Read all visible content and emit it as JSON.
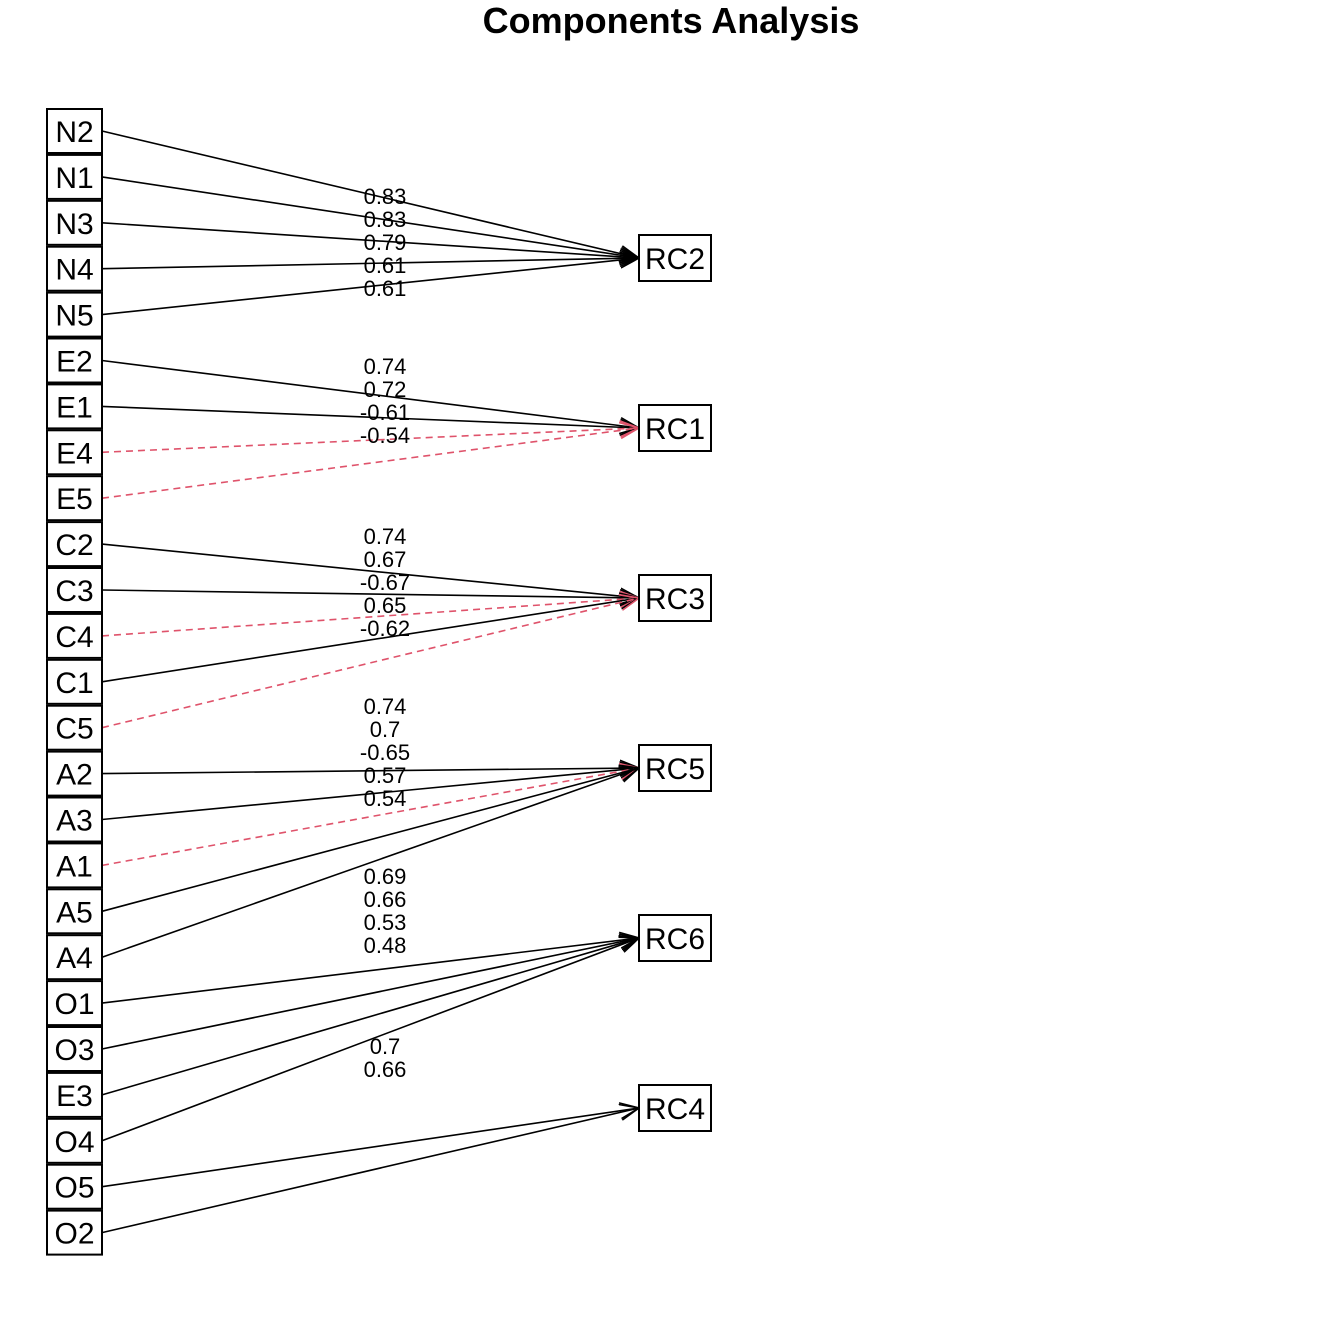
{
  "title": "Components Analysis",
  "colors": {
    "positive": "#000000",
    "negative": "#DF536B"
  },
  "items": [
    "N2",
    "N1",
    "N3",
    "N4",
    "N5",
    "E2",
    "E1",
    "E4",
    "E5",
    "C2",
    "C3",
    "C4",
    "C1",
    "C5",
    "A2",
    "A3",
    "A1",
    "A5",
    "A4",
    "O1",
    "O3",
    "E3",
    "O4",
    "O5",
    "O2"
  ],
  "components": [
    "RC2",
    "RC1",
    "RC3",
    "RC5",
    "RC6",
    "RC4"
  ],
  "loadings": [
    {
      "item": "N2",
      "component": "RC2",
      "value": "0.83"
    },
    {
      "item": "N1",
      "component": "RC2",
      "value": "0.83"
    },
    {
      "item": "N3",
      "component": "RC2",
      "value": "0.79"
    },
    {
      "item": "N4",
      "component": "RC2",
      "value": "0.61"
    },
    {
      "item": "N5",
      "component": "RC2",
      "value": "0.61"
    },
    {
      "item": "E2",
      "component": "RC1",
      "value": "0.74"
    },
    {
      "item": "E1",
      "component": "RC1",
      "value": "0.72"
    },
    {
      "item": "E4",
      "component": "RC1",
      "value": "-0.61"
    },
    {
      "item": "E5",
      "component": "RC1",
      "value": "-0.54"
    },
    {
      "item": "C2",
      "component": "RC3",
      "value": "0.74"
    },
    {
      "item": "C3",
      "component": "RC3",
      "value": "0.67"
    },
    {
      "item": "C4",
      "component": "RC3",
      "value": "-0.67"
    },
    {
      "item": "C1",
      "component": "RC3",
      "value": "0.65"
    },
    {
      "item": "C5",
      "component": "RC3",
      "value": "-0.62"
    },
    {
      "item": "A2",
      "component": "RC5",
      "value": "0.74"
    },
    {
      "item": "A3",
      "component": "RC5",
      "value": "0.7"
    },
    {
      "item": "A1",
      "component": "RC5",
      "value": "-0.65"
    },
    {
      "item": "A5",
      "component": "RC5",
      "value": "0.57"
    },
    {
      "item": "A4",
      "component": "RC5",
      "value": "0.54"
    },
    {
      "item": "O1",
      "component": "RC6",
      "value": "0.69"
    },
    {
      "item": "O3",
      "component": "RC6",
      "value": "0.66"
    },
    {
      "item": "E3",
      "component": "RC6",
      "value": "0.53"
    },
    {
      "item": "O4",
      "component": "RC6",
      "value": "0.48"
    },
    {
      "item": "O5",
      "component": "RC4",
      "value": "0.7"
    },
    {
      "item": "O2",
      "component": "RC4",
      "value": "0.66"
    }
  ]
}
